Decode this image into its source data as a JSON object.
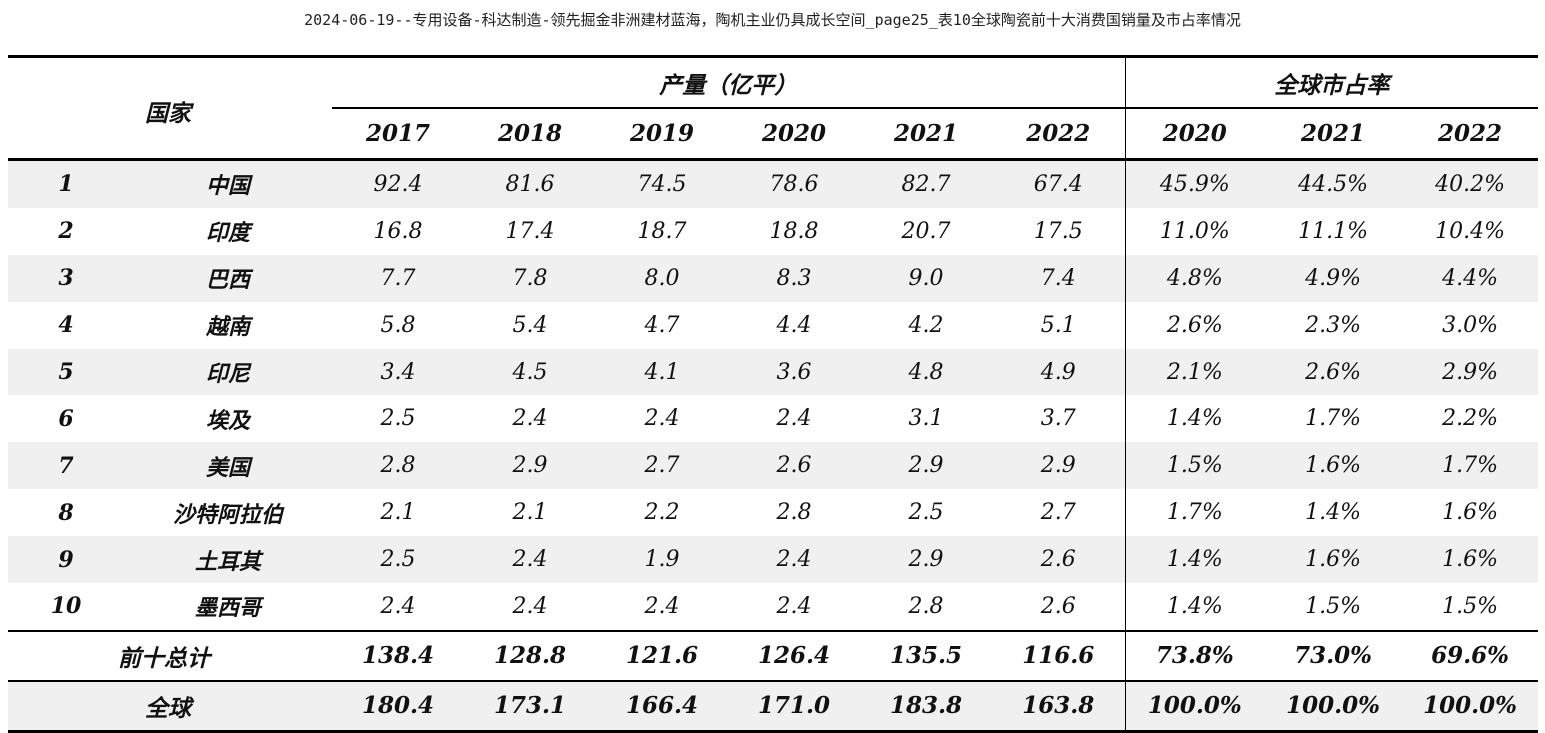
{
  "title": "2024-06-19--专用设备-科达制造-领先掘金非洲建材蓝海，陶机主业仍具成长空间_page25_表10全球陶瓷前十大消费国销量及市占率情况",
  "table": {
    "country_header": "国家",
    "production_group": "产量（亿平）",
    "share_group": "全球市占率",
    "production_years": [
      "2017",
      "2018",
      "2019",
      "2020",
      "2021",
      "2022"
    ],
    "share_years": [
      "2020",
      "2021",
      "2022"
    ],
    "rows": [
      {
        "rank": "1",
        "country": "中国",
        "production": [
          "92.4",
          "81.6",
          "74.5",
          "78.6",
          "82.7",
          "67.4"
        ],
        "share": [
          "45.9%",
          "44.5%",
          "40.2%"
        ]
      },
      {
        "rank": "2",
        "country": "印度",
        "production": [
          "16.8",
          "17.4",
          "18.7",
          "18.8",
          "20.7",
          "17.5"
        ],
        "share": [
          "11.0%",
          "11.1%",
          "10.4%"
        ]
      },
      {
        "rank": "3",
        "country": "巴西",
        "production": [
          "7.7",
          "7.8",
          "8.0",
          "8.3",
          "9.0",
          "7.4"
        ],
        "share": [
          "4.8%",
          "4.9%",
          "4.4%"
        ]
      },
      {
        "rank": "4",
        "country": "越南",
        "production": [
          "5.8",
          "5.4",
          "4.7",
          "4.4",
          "4.2",
          "5.1"
        ],
        "share": [
          "2.6%",
          "2.3%",
          "3.0%"
        ]
      },
      {
        "rank": "5",
        "country": "印尼",
        "production": [
          "3.4",
          "4.5",
          "4.1",
          "3.6",
          "4.8",
          "4.9"
        ],
        "share": [
          "2.1%",
          "2.6%",
          "2.9%"
        ]
      },
      {
        "rank": "6",
        "country": "埃及",
        "production": [
          "2.5",
          "2.4",
          "2.4",
          "2.4",
          "3.1",
          "3.7"
        ],
        "share": [
          "1.4%",
          "1.7%",
          "2.2%"
        ]
      },
      {
        "rank": "7",
        "country": "美国",
        "production": [
          "2.8",
          "2.9",
          "2.7",
          "2.6",
          "2.9",
          "2.9"
        ],
        "share": [
          "1.5%",
          "1.6%",
          "1.7%"
        ]
      },
      {
        "rank": "8",
        "country": "沙特阿拉伯",
        "production": [
          "2.1",
          "2.1",
          "2.2",
          "2.8",
          "2.5",
          "2.7"
        ],
        "share": [
          "1.7%",
          "1.4%",
          "1.6%"
        ]
      },
      {
        "rank": "9",
        "country": "土耳其",
        "production": [
          "2.5",
          "2.4",
          "1.9",
          "2.4",
          "2.9",
          "2.6"
        ],
        "share": [
          "1.4%",
          "1.6%",
          "1.6%"
        ]
      },
      {
        "rank": "10",
        "country": "墨西哥",
        "production": [
          "2.4",
          "2.4",
          "2.4",
          "2.4",
          "2.8",
          "2.6"
        ],
        "share": [
          "1.4%",
          "1.5%",
          "1.5%"
        ]
      }
    ],
    "summary": [
      {
        "label": "前十总计",
        "production": [
          "138.4",
          "128.8",
          "121.6",
          "126.4",
          "135.5",
          "116.6"
        ],
        "share": [
          "73.8%",
          "73.0%",
          "69.6%"
        ]
      },
      {
        "label": "全球",
        "production": [
          "180.4",
          "173.1",
          "166.4",
          "171.0",
          "183.8",
          "163.8"
        ],
        "share": [
          "100.0%",
          "100.0%",
          "100.0%"
        ]
      }
    ]
  }
}
